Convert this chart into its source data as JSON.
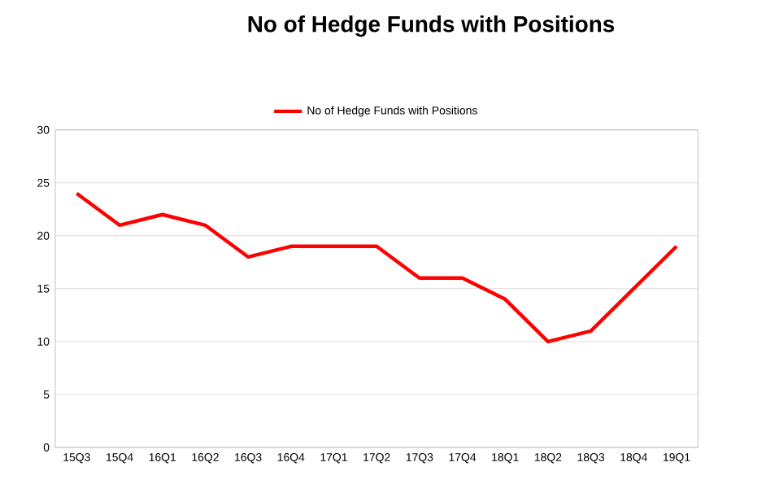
{
  "chart_data": {
    "type": "line",
    "title": "No of Hedge Funds with Positions",
    "categories": [
      "15Q3",
      "15Q4",
      "16Q1",
      "16Q2",
      "16Q3",
      "16Q4",
      "17Q1",
      "17Q2",
      "17Q3",
      "17Q4",
      "18Q1",
      "18Q2",
      "18Q3",
      "18Q4",
      "19Q1"
    ],
    "series": [
      {
        "name": "No of Hedge Funds with Positions",
        "color": "#ff0000",
        "values": [
          24,
          21,
          22,
          21,
          18,
          19,
          19,
          19,
          16,
          16,
          14,
          10,
          11,
          15,
          19
        ]
      }
    ],
    "ylim": [
      0,
      30
    ],
    "yticks": [
      0,
      5,
      10,
      15,
      20,
      25,
      30
    ],
    "grid": "y",
    "legend": "top"
  }
}
